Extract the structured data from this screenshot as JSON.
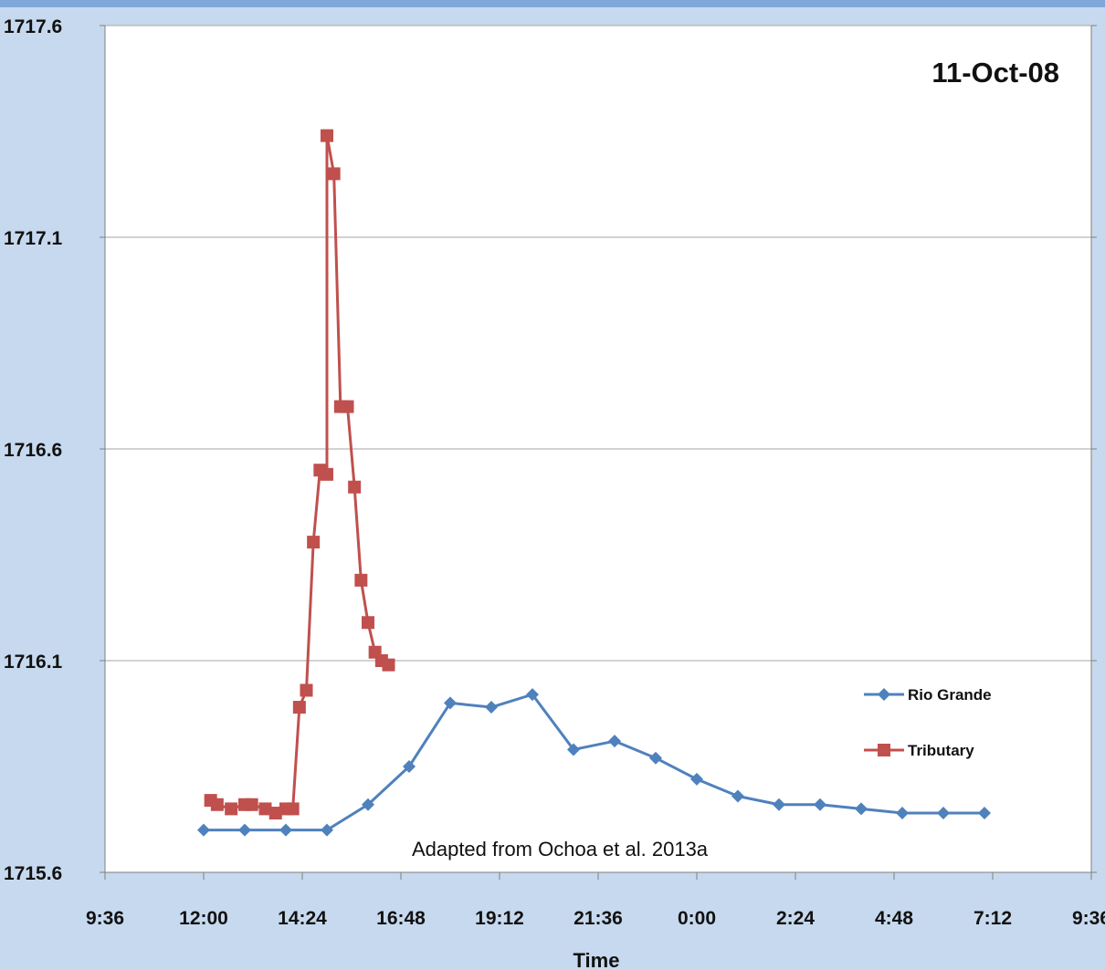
{
  "chart_data": {
    "type": "line",
    "title": "11-Oct-08",
    "xlabel": "Time",
    "ylabel": "",
    "x_tick_labels": [
      "9:36",
      "12:00",
      "14:24",
      "16:48",
      "19:12",
      "21:36",
      "0:00",
      "2:24",
      "4:48",
      "7:12",
      "9:36"
    ],
    "y_tick_labels": [
      "1715.6",
      "1716.1",
      "1716.6",
      "1717.1",
      "1717.6"
    ],
    "xlim_hours": [
      9.6,
      33.6
    ],
    "ylim": [
      1715.6,
      1717.6
    ],
    "grid": "horizontal",
    "legend_position": "right",
    "annotation": "Adapted from Ochoa et al. 2013a",
    "series": [
      {
        "name": "Rio Grande",
        "color": "#4f81bd",
        "marker": "diamond",
        "points": [
          {
            "time": "12:00",
            "hours": 12.0,
            "value": 1715.7
          },
          {
            "time": "13:00",
            "hours": 13.0,
            "value": 1715.7
          },
          {
            "time": "14:00",
            "hours": 14.0,
            "value": 1715.7
          },
          {
            "time": "15:00",
            "hours": 15.0,
            "value": 1715.7
          },
          {
            "time": "16:00",
            "hours": 16.0,
            "value": 1715.76
          },
          {
            "time": "17:00",
            "hours": 17.0,
            "value": 1715.85
          },
          {
            "time": "18:00",
            "hours": 18.0,
            "value": 1716.0
          },
          {
            "time": "19:00",
            "hours": 19.0,
            "value": 1715.99
          },
          {
            "time": "20:00",
            "hours": 20.0,
            "value": 1716.02
          },
          {
            "time": "21:00",
            "hours": 21.0,
            "value": 1715.89
          },
          {
            "time": "22:00",
            "hours": 22.0,
            "value": 1715.91
          },
          {
            "time": "23:00",
            "hours": 23.0,
            "value": 1715.87
          },
          {
            "time": "0:00",
            "hours": 24.0,
            "value": 1715.82
          },
          {
            "time": "1:00",
            "hours": 25.0,
            "value": 1715.78
          },
          {
            "time": "2:00",
            "hours": 26.0,
            "value": 1715.76
          },
          {
            "time": "3:00",
            "hours": 27.0,
            "value": 1715.76
          },
          {
            "time": "4:00",
            "hours": 28.0,
            "value": 1715.75
          },
          {
            "time": "5:00",
            "hours": 29.0,
            "value": 1715.74
          },
          {
            "time": "6:00",
            "hours": 30.0,
            "value": 1715.74
          },
          {
            "time": "7:00",
            "hours": 31.0,
            "value": 1715.74
          }
        ]
      },
      {
        "name": "Tributary",
        "color": "#c0504d",
        "marker": "square",
        "points": [
          {
            "time": "12:10",
            "hours": 12.17,
            "value": 1715.77
          },
          {
            "time": "12:20",
            "hours": 12.33,
            "value": 1715.76
          },
          {
            "time": "12:40",
            "hours": 12.67,
            "value": 1715.75
          },
          {
            "time": "13:00",
            "hours": 13.0,
            "value": 1715.76
          },
          {
            "time": "13:10",
            "hours": 13.17,
            "value": 1715.76
          },
          {
            "time": "13:30",
            "hours": 13.5,
            "value": 1715.75
          },
          {
            "time": "13:45",
            "hours": 13.75,
            "value": 1715.74
          },
          {
            "time": "14:00",
            "hours": 14.0,
            "value": 1715.75
          },
          {
            "time": "14:10",
            "hours": 14.17,
            "value": 1715.75
          },
          {
            "time": "14:20",
            "hours": 14.33,
            "value": 1715.99
          },
          {
            "time": "14:30",
            "hours": 14.5,
            "value": 1716.03
          },
          {
            "time": "14:40",
            "hours": 14.67,
            "value": 1716.38
          },
          {
            "time": "14:50",
            "hours": 14.83,
            "value": 1716.55
          },
          {
            "time": "15:00",
            "hours": 15.0,
            "value": 1716.54
          },
          {
            "time": "15:00",
            "hours": 15.0,
            "value": 1717.34
          },
          {
            "time": "15:10",
            "hours": 15.17,
            "value": 1717.25
          },
          {
            "time": "15:20",
            "hours": 15.33,
            "value": 1716.7
          },
          {
            "time": "15:30",
            "hours": 15.5,
            "value": 1716.7
          },
          {
            "time": "15:40",
            "hours": 15.67,
            "value": 1716.51
          },
          {
            "time": "15:50",
            "hours": 15.83,
            "value": 1716.29
          },
          {
            "time": "16:00",
            "hours": 16.0,
            "value": 1716.19
          },
          {
            "time": "16:10",
            "hours": 16.17,
            "value": 1716.12
          },
          {
            "time": "16:20",
            "hours": 16.33,
            "value": 1716.1
          },
          {
            "time": "16:30",
            "hours": 16.5,
            "value": 1716.09
          }
        ]
      }
    ]
  }
}
